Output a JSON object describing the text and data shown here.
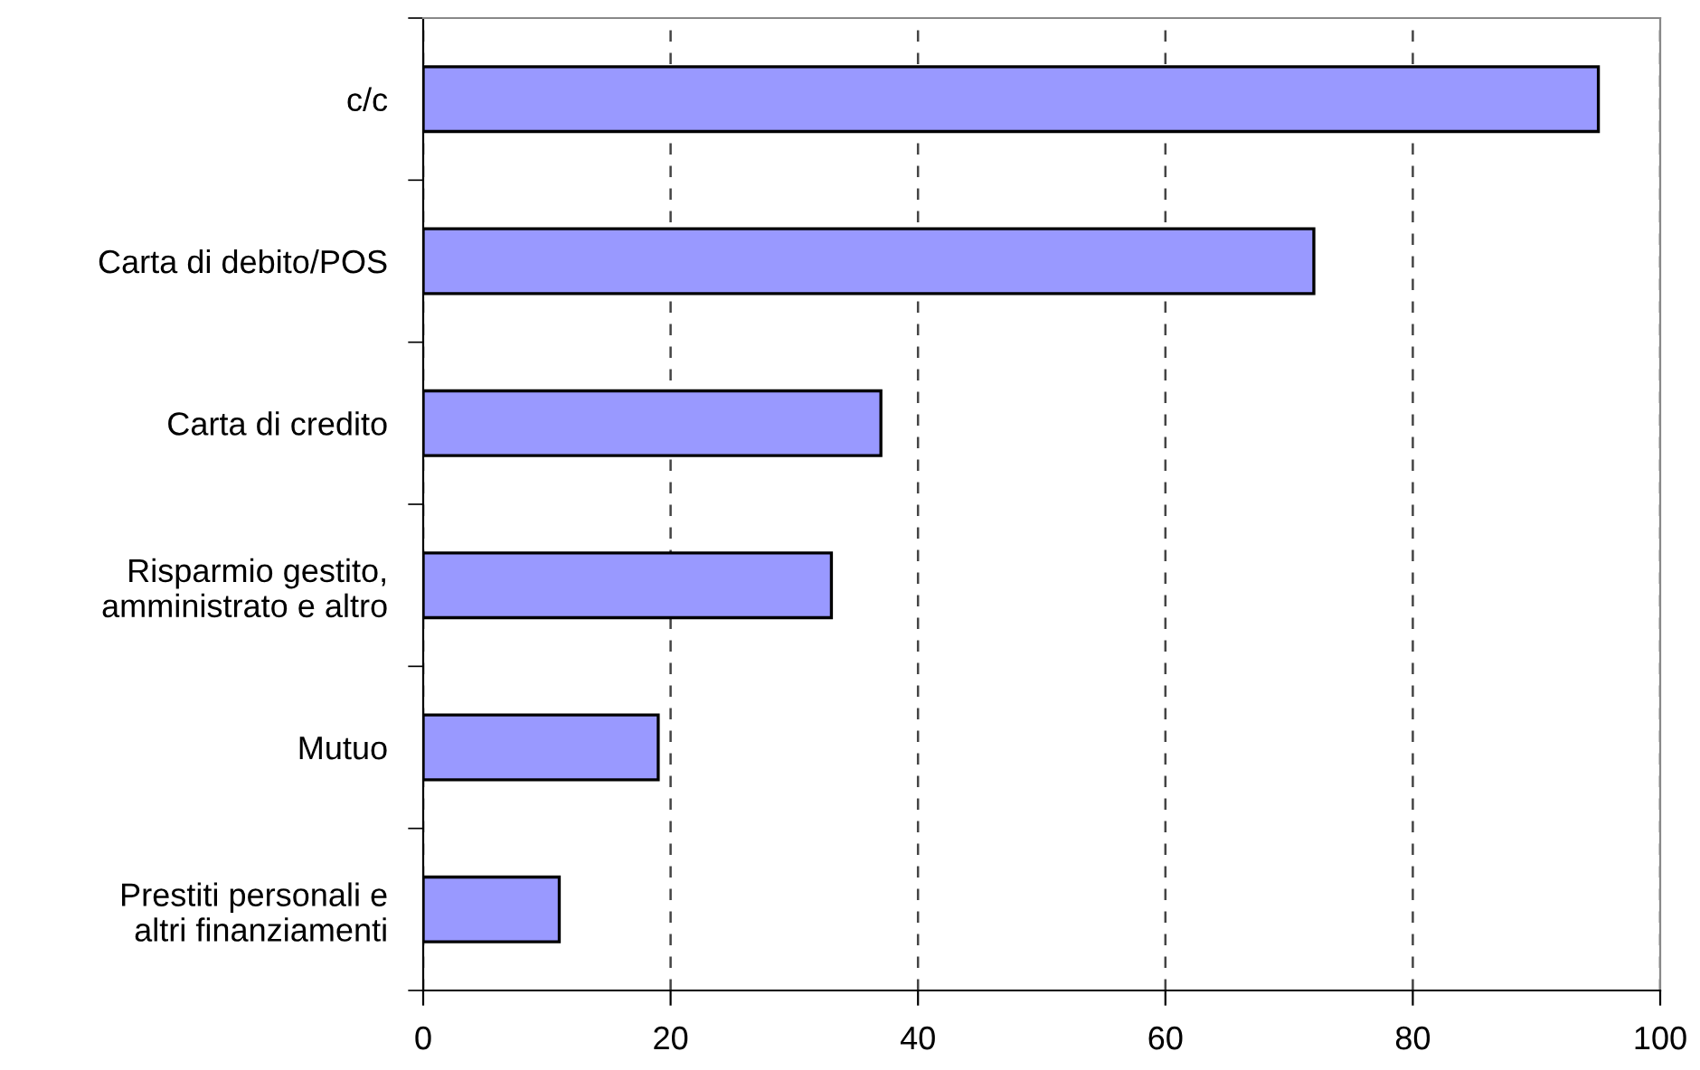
{
  "chart_data": {
    "type": "bar",
    "orientation": "horizontal",
    "categories": [
      "c/c",
      "Carta di debito/POS",
      "Carta di credito",
      "Risparmio gestito,\namministrato e altro",
      "Mutuo",
      "Prestiti personali e\naltri finanziamenti"
    ],
    "values": [
      95,
      72,
      37,
      33,
      19,
      11
    ],
    "color": "#9999ff",
    "xlim": [
      0,
      100
    ],
    "xticks": [
      0,
      20,
      40,
      60,
      80,
      100
    ],
    "grid": "x"
  }
}
